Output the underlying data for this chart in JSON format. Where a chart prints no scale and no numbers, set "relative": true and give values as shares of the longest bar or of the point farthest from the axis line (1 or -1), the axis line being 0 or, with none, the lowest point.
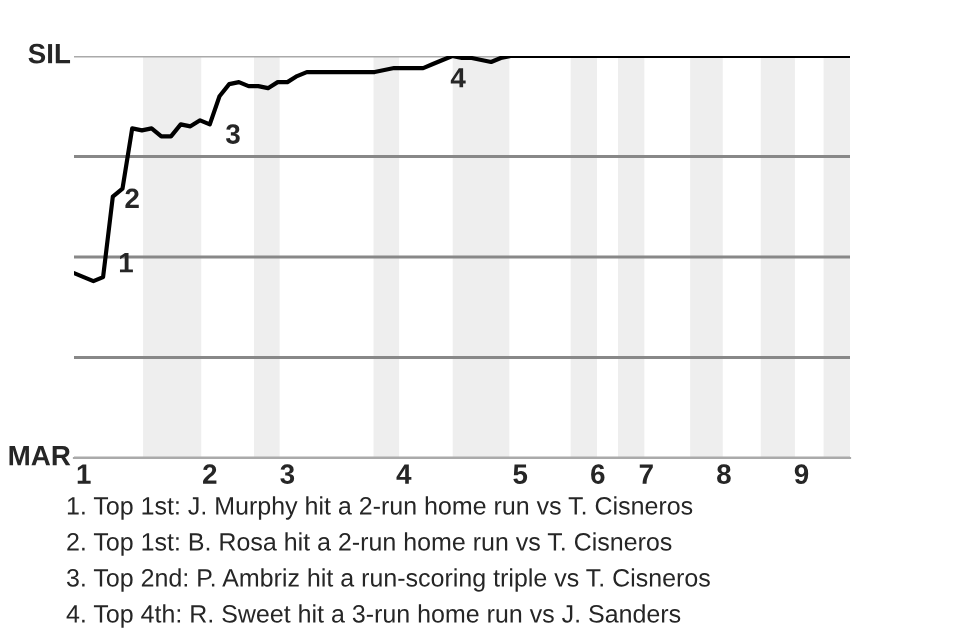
{
  "chart_data": {
    "type": "line",
    "relative": true,
    "categories": [
      null,
      "1",
      null,
      null,
      null,
      null,
      null,
      null,
      null,
      null,
      null,
      null,
      null,
      null,
      "2",
      null,
      null,
      null,
      null,
      null,
      null,
      null,
      "3",
      null,
      null,
      null,
      null,
      null,
      null,
      null,
      null,
      null,
      null,
      null,
      "4",
      null,
      null,
      null,
      null,
      null,
      null,
      null,
      null,
      null,
      null,
      null,
      "5",
      null,
      null,
      null,
      null,
      null,
      null,
      null,
      "6",
      null,
      null,
      null,
      null,
      "7",
      null,
      null,
      null,
      null,
      null,
      null,
      null,
      "8",
      null,
      null,
      null,
      null,
      null,
      null,
      null,
      "9",
      null,
      null,
      null,
      null,
      null
    ],
    "series": [
      {
        "color": "#000000",
        "values": [
          0.46,
          0.45,
          0.44,
          0.45,
          0.65,
          0.67,
          0.82,
          0.815,
          0.82,
          0.8,
          0.8,
          0.83,
          0.825,
          0.84,
          0.83,
          0.9,
          0.93,
          0.935,
          0.925,
          0.925,
          0.92,
          0.935,
          0.935,
          0.95,
          0.96,
          0.96,
          0.96,
          0.96,
          0.96,
          0.96,
          0.96,
          0.96,
          0.965,
          0.97,
          0.97,
          0.97,
          0.97,
          0.98,
          0.99,
          1,
          0.995,
          0.995,
          0.99,
          0.985,
          0.995,
          1,
          1,
          1,
          1,
          1,
          1,
          1,
          1,
          1,
          1,
          1,
          1,
          1,
          1,
          1,
          1,
          1,
          1,
          1,
          1,
          1,
          1,
          1,
          1,
          1,
          1,
          1,
          1,
          1,
          1,
          1,
          1,
          1,
          1,
          1,
          1
        ]
      }
    ],
    "ref_lines": [
      {
        "axis": "y",
        "value": 1,
        "label": "SIL",
        "color": "#aaaaaa"
      },
      {
        "axis": "y",
        "value": 0,
        "label": "MAR",
        "color": "#aaaaaa"
      },
      {
        "axis": "y",
        "value": 0.25,
        "label": null,
        "color": "#888888"
      },
      {
        "axis": "y",
        "value": 0.5,
        "label": null,
        "color": "#888888"
      },
      {
        "axis": "y",
        "value": 0.75,
        "label": null,
        "color": "#888888"
      }
    ],
    "annotations": [
      "1",
      "2",
      "3",
      "4",
      "1. Top 1st: J. Murphy hit a 2-run home run vs T. Cisneros",
      "2. Top 1st: B. Rosa hit a 2-run home run vs T. Cisneros",
      "3. Top 2nd: P. Ambriz hit a run-scoring triple vs T. Cisneros",
      "4. Top 4th: R. Sweet hit a 3-run home run vs J. Sanders"
    ]
  }
}
